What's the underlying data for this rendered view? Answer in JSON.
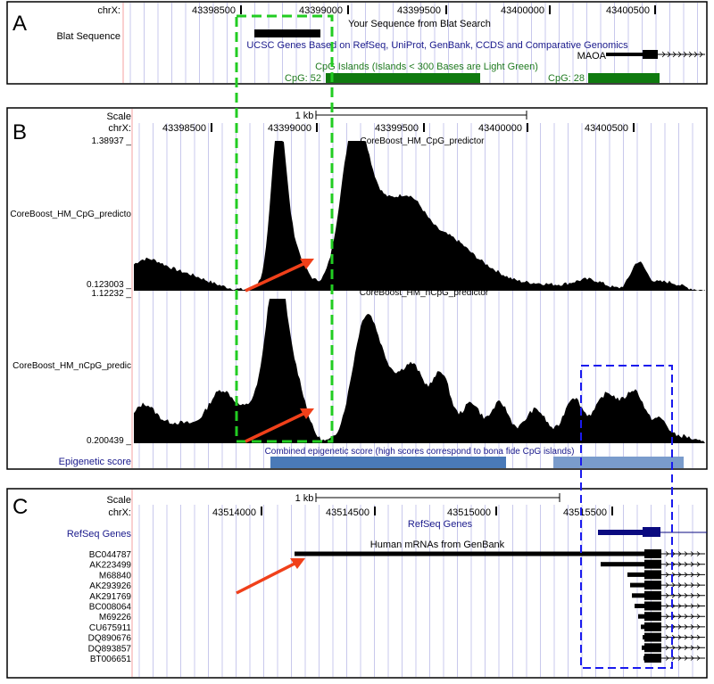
{
  "panels": {
    "A": {
      "label": "A",
      "chrom": "chrX:",
      "ticks": [
        "43398500",
        "43399000",
        "43399500",
        "43400000",
        "43400500"
      ],
      "track_labels": {
        "blat": "Blat Sequence",
        "blat_title": "Your Sequence from Blat Search",
        "ucsc_title": "UCSC Genes Based on RefSeq, UniProt, GenBank, CCDS and Comparative Genomics",
        "gene": "MAOA",
        "cpg_title": "CpG Islands (Islands < 300 Bases are Light Green)",
        "cpg1": "CpG: 52",
        "cpg2": "CpG: 28"
      }
    },
    "B": {
      "label": "B",
      "scale": "Scale",
      "scale_bar": "1 kb",
      "chrom": "chrX:",
      "ticks": [
        "43398500",
        "43399000",
        "43399500",
        "43400000",
        "43400500"
      ],
      "track1": {
        "name": "CoreBoost_HM_CpG_predictor",
        "side_label": "CoreBoost_HM_CpG_predicto",
        "max": "1.38937 _",
        "min": "0.123003 _"
      },
      "track2": {
        "name": "CoreBoost_HM_nCpG_predictor",
        "side_label": "CoreBoost_HM_nCpG_predic",
        "max": "1.12232 _",
        "min": "0.200439 _"
      },
      "epigenetic": {
        "label": "Epigenetic score",
        "title": "Combined epigenetic score (high scores correspond to bona fide CpG islands)"
      }
    },
    "C": {
      "label": "C",
      "scale": "Scale",
      "scale_bar": "1 kb",
      "chrom": "chrX:",
      "ticks": [
        "43514000",
        "43514500",
        "43515000",
        "43515500"
      ],
      "refseq_label": "RefSeq Genes",
      "refseq_title": "RefSeq Genes",
      "mrna_title": "Human mRNAs from GenBank",
      "mrnas": [
        "BC044787",
        "AK223499",
        "M68840",
        "AK293926",
        "AK291769",
        "BC008064",
        "M69226",
        "CU675911",
        "DQ890676",
        "DQ893857",
        "BT006651"
      ]
    }
  },
  "colors": {
    "grid": "#c8c8ec",
    "signal": "#000000",
    "arrow": "#f0401a",
    "green_box": "#22cc22",
    "blue_box": "#1a1aee",
    "cpg": "#0f7a0f",
    "epi": "#4a7ab8",
    "epi_light": "#7a9ccc",
    "refseq": "#0a0a80"
  }
}
